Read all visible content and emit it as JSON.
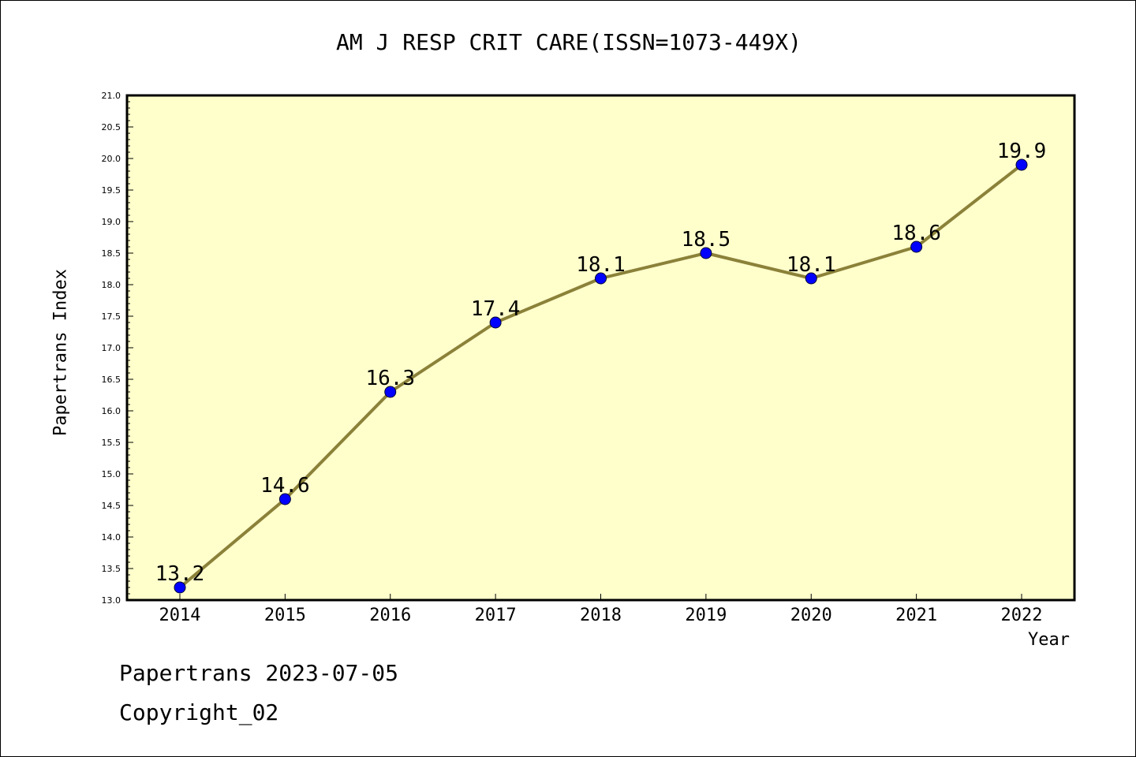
{
  "chart_data": {
    "type": "line",
    "title": "AM J RESP CRIT CARE(ISSN=1073-449X)",
    "xlabel": "Year",
    "ylabel": "Papertrans Index",
    "categories": [
      "2014",
      "2015",
      "2016",
      "2017",
      "2018",
      "2019",
      "2020",
      "2021",
      "2022"
    ],
    "series": [
      {
        "values": [
          13.2,
          14.6,
          16.3,
          17.4,
          18.1,
          18.5,
          18.1,
          18.6,
          19.9
        ],
        "data_labels": [
          "13.2",
          "14.6",
          "16.3",
          "17.4",
          "18.1",
          "18.5",
          "18.1",
          "18.6",
          "19.9"
        ]
      }
    ],
    "ylim": [
      13.0,
      21.0
    ],
    "y_ticks": [
      "13.0",
      "13.5",
      "14.0",
      "14.5",
      "15.0",
      "15.5",
      "16.0",
      "16.5",
      "17.0",
      "17.5",
      "18.0",
      "18.5",
      "19.0",
      "19.5",
      "20.0",
      "20.5",
      "21.0"
    ],
    "grid": false,
    "colors": {
      "plot_background": "#ffffcc",
      "line": "#8b8139",
      "marker": "#0000ff"
    }
  },
  "footer": {
    "date_text": "Papertrans 2023-07-05",
    "copyright_text": "Copyright_02"
  }
}
